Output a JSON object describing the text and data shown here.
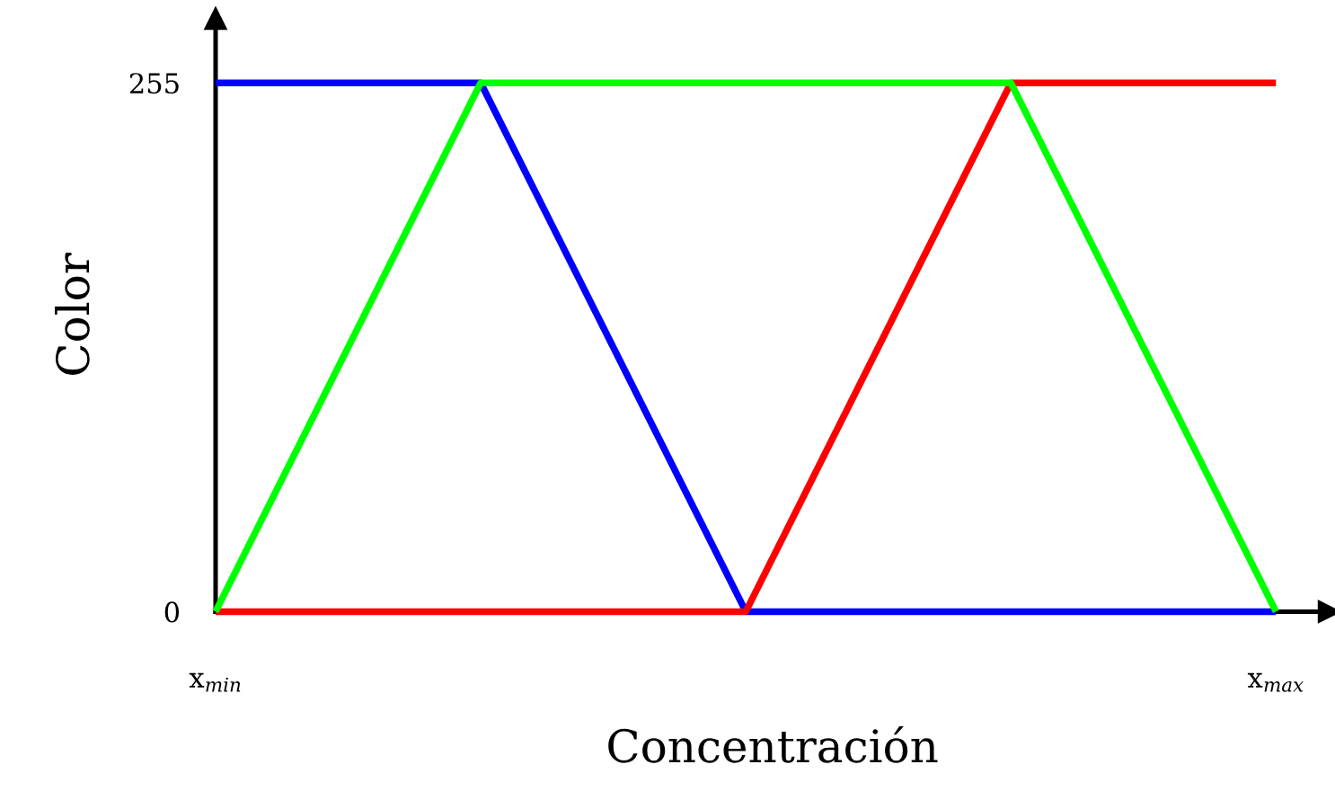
{
  "chart_data": {
    "type": "line",
    "xlabel": "Concentración",
    "ylabel": "Color",
    "categories": [
      "x$_{min}$",
      null,
      null,
      null,
      "x$_{max}$"
    ],
    "series": [
      {
        "color": "#0000ff",
        "values": [
          255,
          255,
          0,
          0,
          0
        ]
      },
      {
        "color": "#ff0000",
        "values": [
          0,
          0,
          0,
          255,
          255
        ]
      },
      {
        "color": "#00ff00",
        "values": [
          0,
          255,
          255,
          255,
          0
        ]
      }
    ],
    "ylim": [
      0,
      286
    ],
    "yticks": [
      0,
      255
    ],
    "grid": false,
    "legend": false,
    "marker": "none",
    "line_style": "solid"
  }
}
